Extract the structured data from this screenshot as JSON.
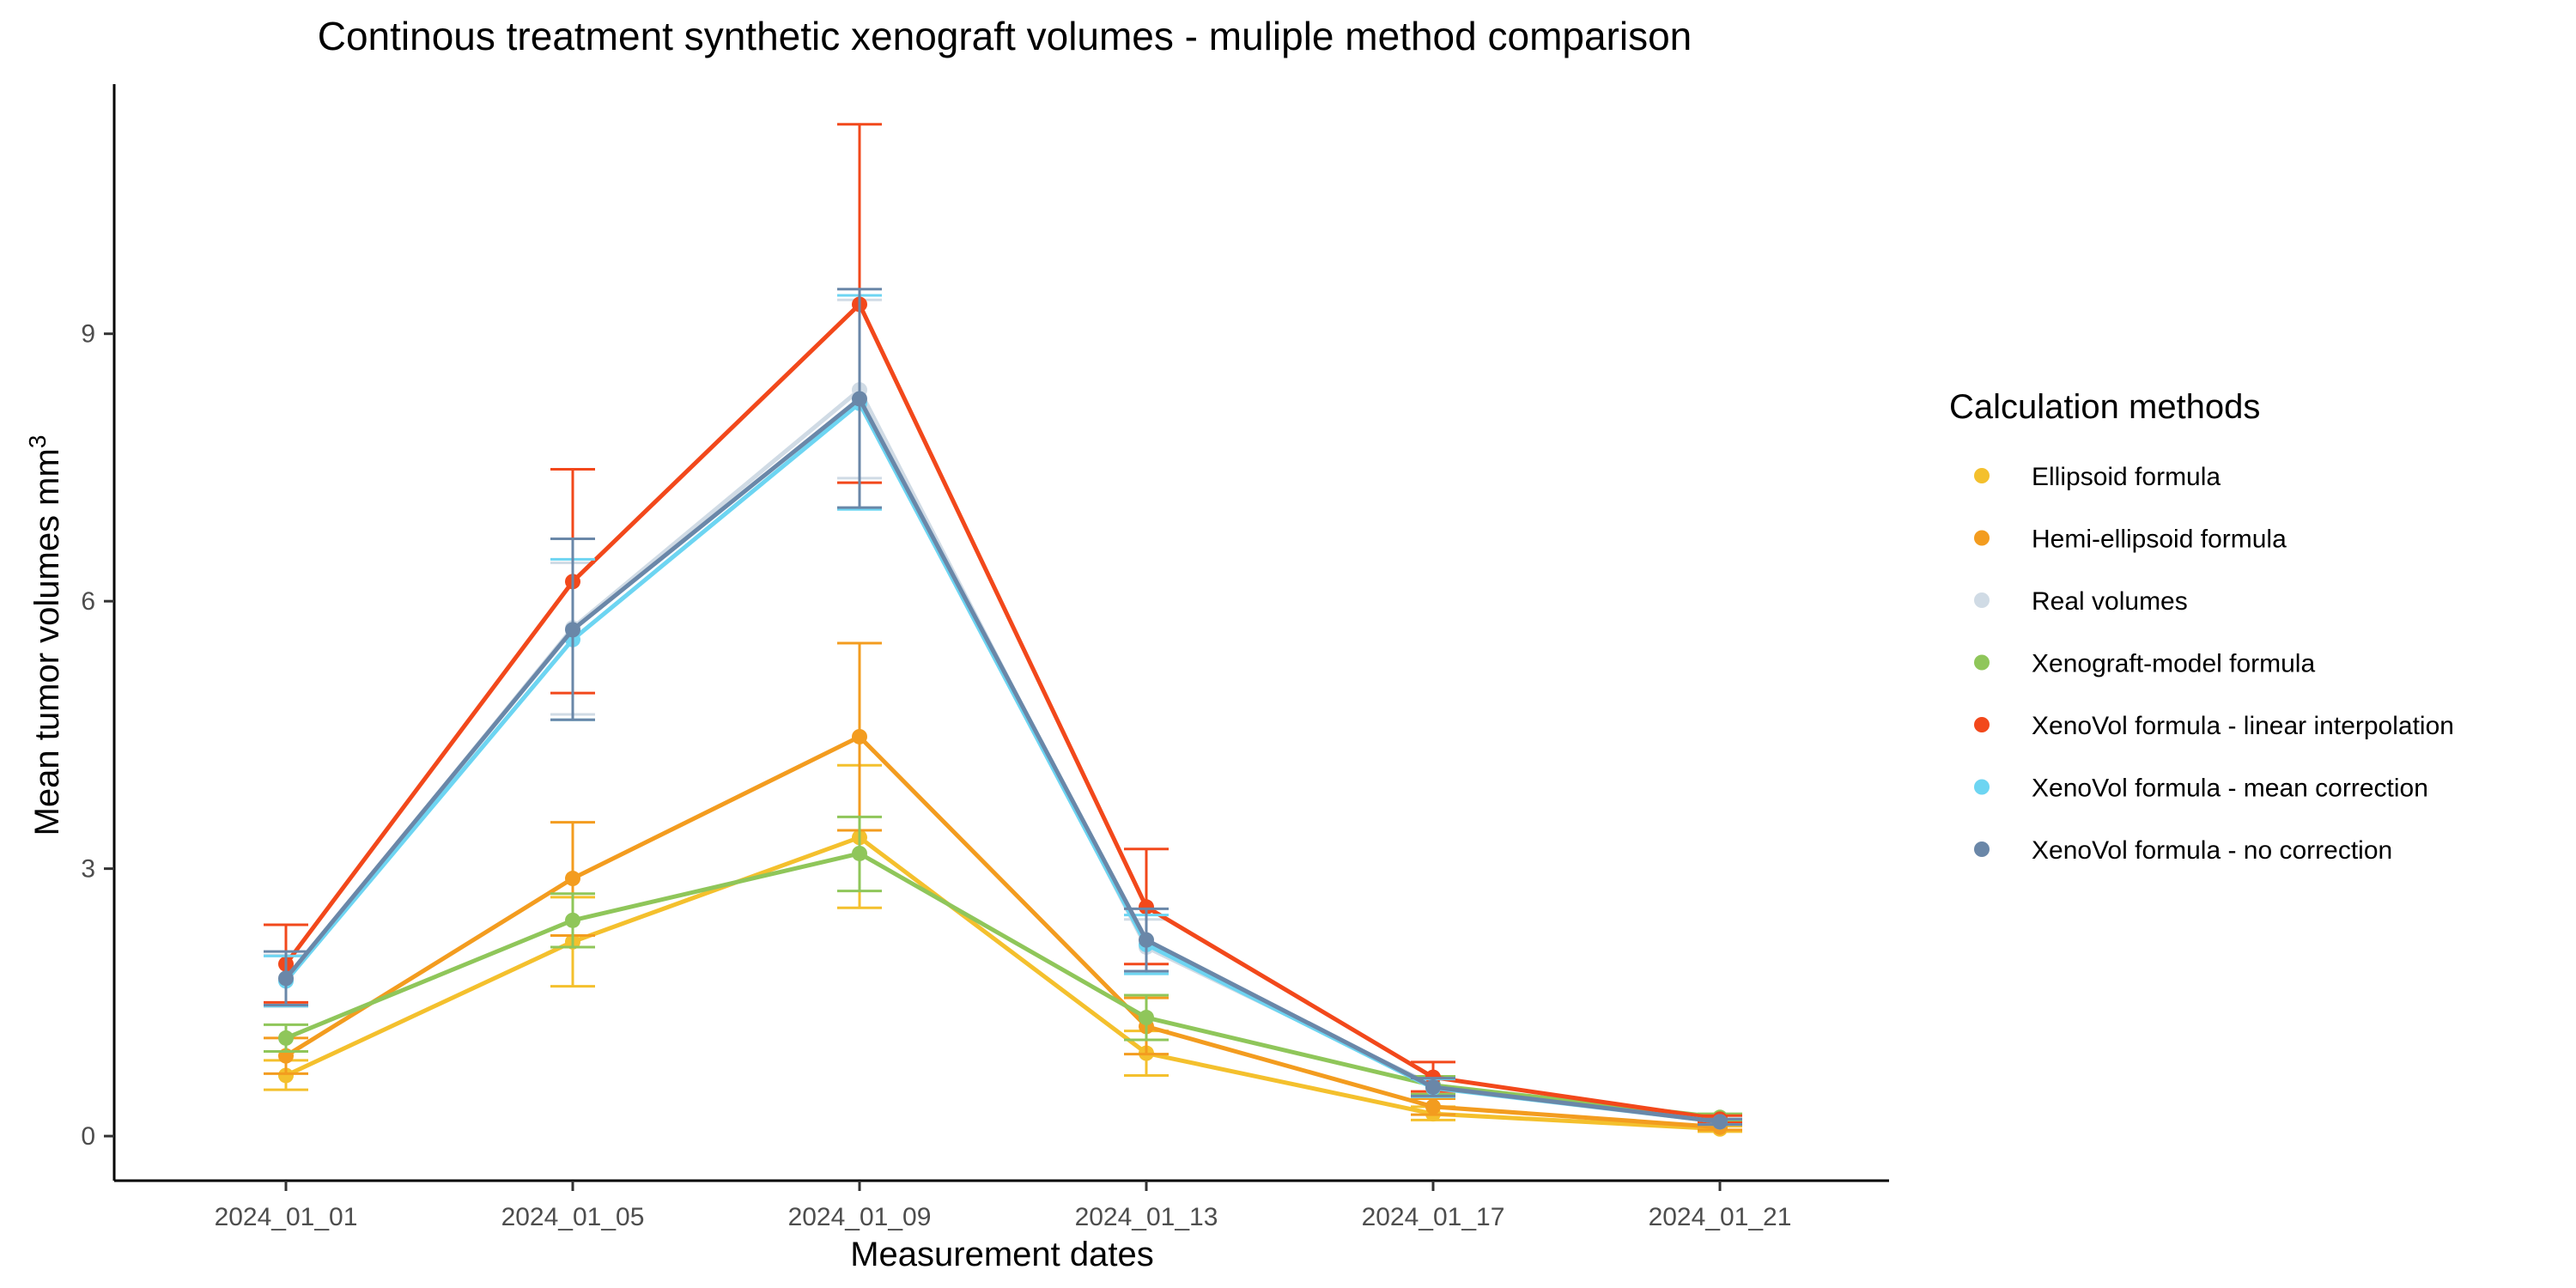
{
  "chart_data": {
    "type": "line",
    "title": "Continous treatment synthetic xenograft volumes - muliple method comparison",
    "xlabel": "Measurement dates",
    "ylabel": "Mean tumor volumes mm",
    "ylabel_superscript": "3",
    "x": [
      "2024_01_01",
      "2024_01_05",
      "2024_01_09",
      "2024_01_13",
      "2024_01_17",
      "2024_01_21"
    ],
    "ylim": [
      -0.5,
      11.8
    ],
    "yticks": [
      0,
      3,
      6,
      9
    ],
    "ytick_labels": [
      "0",
      "3",
      "6",
      "9"
    ],
    "grid": false,
    "error_bars": true,
    "legend": {
      "title": "Calculation methods",
      "position": "right"
    },
    "series": [
      {
        "name": "Ellipsoid formula",
        "color": "#F4C02D",
        "values": [
          0.68,
          2.18,
          3.35,
          0.93,
          0.25,
          0.08
        ],
        "err_low": [
          0.52,
          1.68,
          2.56,
          0.68,
          0.18,
          0.05
        ],
        "err_high": [
          0.85,
          2.68,
          4.16,
          1.18,
          0.33,
          0.11
        ]
      },
      {
        "name": "Hemi-ellipsoid formula",
        "color": "#F39C1F",
        "values": [
          0.9,
          2.89,
          4.48,
          1.23,
          0.33,
          0.1
        ],
        "err_low": [
          0.7,
          2.25,
          3.43,
          0.92,
          0.24,
          0.07
        ],
        "err_high": [
          1.1,
          3.52,
          5.53,
          1.55,
          0.42,
          0.13
        ]
      },
      {
        "name": "Real volumes",
        "color": "#D0DBE5",
        "values": [
          1.75,
          5.7,
          8.37,
          2.12,
          0.57,
          0.17
        ],
        "err_low": [
          1.45,
          4.73,
          7.38,
          1.82,
          0.45,
          0.14
        ],
        "err_high": [
          2.03,
          6.43,
          9.38,
          2.43,
          0.67,
          0.2
        ]
      },
      {
        "name": "Xenograft-model formula",
        "color": "#8FC65A",
        "values": [
          1.1,
          2.42,
          3.17,
          1.33,
          0.57,
          0.21
        ],
        "err_low": [
          0.95,
          2.12,
          2.75,
          1.08,
          0.47,
          0.17
        ],
        "err_high": [
          1.25,
          2.72,
          3.58,
          1.58,
          0.67,
          0.25
        ]
      },
      {
        "name": "XenoVol formula - linear interpolation",
        "color": "#F2481B",
        "values": [
          1.93,
          6.22,
          9.33,
          2.57,
          0.66,
          0.19
        ],
        "err_low": [
          1.5,
          4.97,
          7.33,
          1.93,
          0.5,
          0.15
        ],
        "err_high": [
          2.37,
          7.48,
          11.35,
          3.22,
          0.83,
          0.23
        ]
      },
      {
        "name": "XenoVol formula - mean correction",
        "color": "#6DD5F2",
        "values": [
          1.74,
          5.57,
          8.22,
          2.15,
          0.54,
          0.16
        ],
        "err_low": [
          1.46,
          4.67,
          7.03,
          1.82,
          0.44,
          0.13
        ],
        "err_high": [
          2.02,
          6.47,
          9.43,
          2.48,
          0.64,
          0.19
        ]
      },
      {
        "name": "XenoVol formula - no correction",
        "color": "#6A87A8",
        "values": [
          1.77,
          5.68,
          8.27,
          2.2,
          0.55,
          0.16
        ],
        "err_low": [
          1.47,
          4.67,
          7.05,
          1.85,
          0.45,
          0.13
        ],
        "err_high": [
          2.07,
          6.7,
          9.5,
          2.55,
          0.65,
          0.19
        ]
      }
    ]
  }
}
